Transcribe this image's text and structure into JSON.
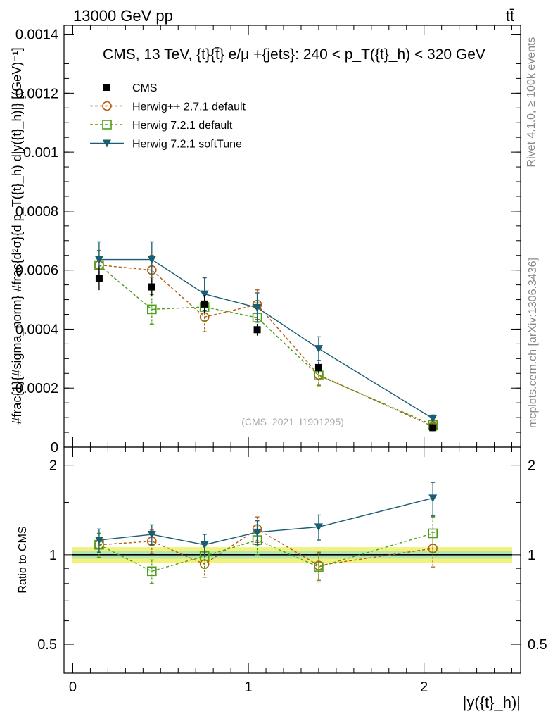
{
  "header": {
    "left": "13000 GeV pp",
    "right": "tt̄"
  },
  "side": {
    "rivet": "Rivet 4.1.0, ≥ 100k events",
    "mcplots": "mcplots.cern.ch [arXiv:1306.3436]"
  },
  "chart_data": [
    {
      "type": "scatter",
      "title": "CMS, 13 TeV, {t}{t̄} e/μ +{jets}: 240 <  p_T({t}_h) < 320 GeV",
      "watermark": "(CMS_2021_I1901295)",
      "ylabel": "#frac{1}{#sigma_norm} #frac{d²σ}{d p_T({t}_h) d|y({t}_h)|} [(GeV)⁻¹]",
      "xlabel": "|y({t}_h)|",
      "xlim": [
        -0.05,
        2.55
      ],
      "ylim": [
        0,
        0.00143
      ],
      "ytick_labels": [
        "0",
        "0.0002",
        "0.0004",
        "0.0006",
        "0.0008",
        "0.001",
        "0.0012",
        "0.0014"
      ],
      "ytick_values": [
        0,
        0.0002,
        0.0004,
        0.0006,
        0.0008,
        0.001,
        0.0012,
        0.0014
      ],
      "x": [
        0.15,
        0.45,
        0.75,
        1.05,
        1.4,
        2.05
      ],
      "series": [
        {
          "name": "CMS",
          "color": "#000000",
          "marker": "filled-square",
          "values": [
            0.000572,
            0.000543,
            0.000485,
            0.000398,
            0.00027,
            6.6e-05
          ],
          "errors": [
            4e-05,
            3e-05,
            3e-05,
            2e-05,
            2e-05,
            6e-06
          ]
        },
        {
          "name": "Herwig++ 2.7.1 default",
          "color": "#b35c0e",
          "marker": "open-circle",
          "values": [
            0.000617,
            0.0006,
            0.000441,
            0.000483,
            0.000245,
            7e-05
          ],
          "errors": [
            5e-05,
            5e-05,
            5e-05,
            5e-05,
            3.5e-05,
            1e-05
          ]
        },
        {
          "name": "Herwig 7.2.1 default",
          "color": "#4d9e19",
          "marker": "open-square",
          "values": [
            0.000617,
            0.000467,
            0.000475,
            0.000439,
            0.000243,
            7.5e-05
          ],
          "errors": [
            5e-05,
            5e-05,
            5e-05,
            5e-05,
            3.5e-05,
            1e-05
          ]
        },
        {
          "name": "Herwig 7.2.1 softTune",
          "color": "#1a5e73",
          "marker": "filled-triangle-down",
          "values": [
            0.000636,
            0.000636,
            0.000519,
            0.000473,
            0.000334,
            9.7e-05
          ],
          "errors": [
            6e-05,
            6e-05,
            5.5e-05,
            5e-05,
            4e-05,
            1.2e-05
          ]
        }
      ]
    },
    {
      "type": "scatter",
      "title": "",
      "ylabel": "Ratio to CMS",
      "ylim": [
        0.4,
        2.3
      ],
      "ytick_labels": [
        "0.5",
        "1",
        "2"
      ],
      "ytick_values": [
        0.5,
        1,
        2
      ],
      "xtick_labels": [
        "0",
        "1",
        "2"
      ],
      "xtick_values": [
        0,
        1,
        2
      ],
      "band": {
        "inner": 0.03,
        "outer": 0.06,
        "colors": [
          "#b3e6b3",
          "#f2f27a"
        ]
      },
      "x": [
        0.15,
        0.45,
        0.75,
        1.05,
        1.4,
        2.05
      ],
      "series": [
        {
          "name": "Herwig++ 2.7.1 default",
          "values": [
            1.08,
            1.11,
            0.93,
            1.22,
            0.92,
            1.05
          ],
          "errors": [
            0.1,
            0.1,
            0.09,
            0.12,
            0.1,
            0.14
          ]
        },
        {
          "name": "Herwig 7.2.1 default",
          "values": [
            1.08,
            0.88,
            0.99,
            1.12,
            0.91,
            1.18
          ],
          "errors": [
            0.1,
            0.08,
            0.09,
            0.12,
            0.1,
            0.16
          ]
        },
        {
          "name": "Herwig 7.2.1 softTune",
          "values": [
            1.12,
            1.17,
            1.08,
            1.19,
            1.24,
            1.55
          ],
          "errors": [
            0.1,
            0.09,
            0.09,
            0.11,
            0.12,
            0.2
          ]
        }
      ]
    }
  ]
}
